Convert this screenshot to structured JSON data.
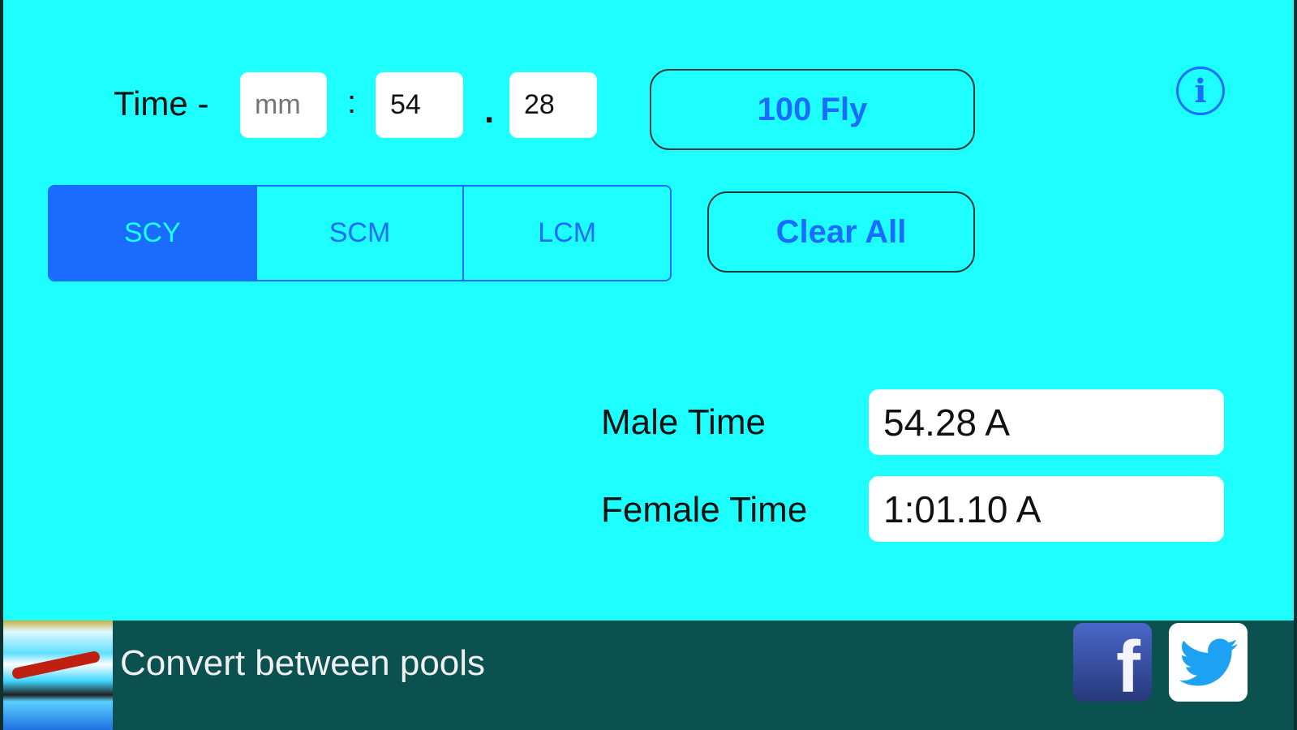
{
  "time": {
    "label": "Time -",
    "minutes": {
      "value": "",
      "placeholder": "mm"
    },
    "colon": ":",
    "seconds": {
      "value": "54"
    },
    "dot": ".",
    "hundredths": {
      "value": "28"
    }
  },
  "event_button": "100 Fly",
  "info_icon": "info-icon",
  "course": {
    "options": [
      "SCY",
      "SCM",
      "LCM"
    ],
    "selected": "SCY"
  },
  "clear_button": "Clear All",
  "results": {
    "male_label": "Male Time",
    "male_value": "54.28 A",
    "female_label": "Female Time",
    "female_value": "1:01.10 A"
  },
  "footer": {
    "text": "Convert between pools",
    "icons": [
      "swimmer-image",
      "facebook-icon",
      "twitter-icon"
    ]
  },
  "colors": {
    "background": "#1dfeff",
    "accent": "#1a6cff",
    "footer": "#0b5150"
  }
}
